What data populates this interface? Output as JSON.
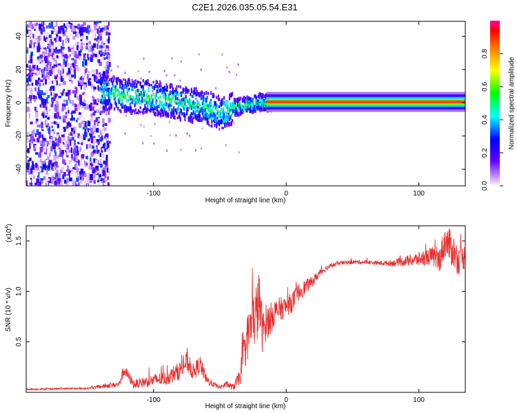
{
  "figure": {
    "title": "C2E1.2026.035.05.54.E31"
  },
  "chart_data": [
    {
      "type": "heatmap",
      "xlabel": "Height of straight line (km)",
      "ylabel": "Frequency (Hz)",
      "xlim": [
        -196,
        135
      ],
      "ylim": [
        -50,
        49
      ],
      "xticks": [
        -100,
        0,
        100
      ],
      "yticks": [
        -40,
        -20,
        0,
        20,
        40
      ],
      "colorbar": {
        "label": "Normalized spectral amplitude",
        "range": [
          0,
          1
        ],
        "ticks": [
          0.0,
          0.2,
          0.4,
          0.6,
          0.8
        ]
      },
      "regions": [
        {
          "x": [
            -196,
            -133
          ],
          "freq": [
            -50,
            49
          ],
          "amplitude": [
            0.0,
            0.35
          ]
        },
        {
          "x": [
            -140,
            -40
          ],
          "freq": [
            -12,
            10
          ],
          "amplitude": [
            0.2,
            0.55
          ]
        },
        {
          "x": [
            -40,
            0
          ],
          "freq": [
            -4,
            4
          ],
          "amplitude": [
            0.25,
            0.6
          ]
        },
        {
          "x": [
            0,
            135
          ],
          "freq": [
            -1,
            1.5
          ],
          "amplitude": [
            0.6,
            1.0
          ]
        }
      ],
      "ridge": [
        {
          "x": -135,
          "f": 6
        },
        {
          "x": -120,
          "f": 4
        },
        {
          "x": -100,
          "f": 3
        },
        {
          "x": -80,
          "f": 0
        },
        {
          "x": -60,
          "f": -3
        },
        {
          "x": -50,
          "f": -6
        },
        {
          "x": -40,
          "f": -3
        },
        {
          "x": -20,
          "f": 0
        },
        {
          "x": 0,
          "f": 1
        },
        {
          "x": 135,
          "f": 0.5
        }
      ]
    },
    {
      "type": "line",
      "xlabel": "Height of straight line (km)",
      "ylabel": "SNR (10 * v/v)",
      "yscale_label": "(x10",
      "yscale_exp": "4",
      "xlim": [
        -196,
        135
      ],
      "ylim": [
        0,
        1.65
      ],
      "xticks": [
        -100,
        0,
        100
      ],
      "yticks": [
        0.5,
        1.0,
        1.5
      ],
      "series": [
        {
          "color": "#e83030",
          "x": [
            -196,
            -150,
            -126,
            -124,
            -122,
            -115,
            -100,
            -90,
            -80,
            -75,
            -70,
            -65,
            -60,
            -55,
            -50,
            -45,
            -40,
            -35,
            -33,
            -30,
            -28,
            -25,
            -22,
            -20,
            -18,
            -15,
            -12,
            -10,
            -5,
            0,
            5,
            10,
            15,
            20,
            25,
            30,
            35,
            40,
            50,
            60,
            70,
            80,
            90,
            100,
            110,
            115,
            120,
            125,
            130,
            135
          ],
          "y": [
            0.03,
            0.04,
            0.08,
            0.16,
            0.22,
            0.08,
            0.12,
            0.14,
            0.22,
            0.3,
            0.2,
            0.28,
            0.12,
            0.08,
            0.05,
            0.08,
            0.05,
            0.15,
            0.3,
            0.5,
            0.6,
            0.7,
            0.8,
            0.9,
            0.6,
            0.7,
            0.72,
            0.78,
            0.82,
            0.85,
            0.9,
            1.0,
            1.05,
            1.1,
            1.18,
            1.23,
            1.26,
            1.28,
            1.29,
            1.29,
            1.28,
            1.28,
            1.3,
            1.32,
            1.35,
            1.3,
            1.5,
            1.42,
            1.3,
            1.35
          ],
          "noise": [
            0.01,
            0.01,
            0.03,
            0.05,
            0.06,
            0.04,
            0.06,
            0.07,
            0.09,
            0.1,
            0.08,
            0.09,
            0.05,
            0.03,
            0.02,
            0.03,
            0.03,
            0.08,
            0.15,
            0.22,
            0.25,
            0.28,
            0.32,
            0.32,
            0.2,
            0.18,
            0.16,
            0.14,
            0.12,
            0.1,
            0.1,
            0.09,
            0.07,
            0.05,
            0.04,
            0.03,
            0.02,
            0.02,
            0.02,
            0.02,
            0.02,
            0.03,
            0.05,
            0.07,
            0.09,
            0.12,
            0.16,
            0.18,
            0.14,
            0.12
          ]
        }
      ]
    }
  ]
}
